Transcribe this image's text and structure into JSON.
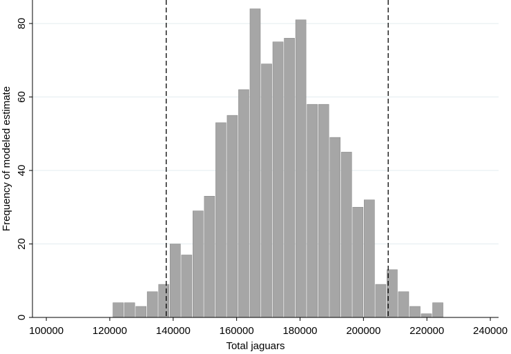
{
  "chart_data": {
    "type": "histogram",
    "x_label": "Total jaguars",
    "y_label": "Frequency of modeled estimate",
    "bins": [
      120900,
      124500,
      128100,
      131700,
      135300,
      138900,
      142500,
      146100,
      149700,
      153300,
      156900,
      160500,
      164100,
      167700,
      171300,
      174900,
      178500,
      182100,
      185700,
      189300,
      192900,
      196500,
      200100,
      203700,
      207300,
      210900,
      214500,
      218100,
      221700,
      225300
    ],
    "values": [
      4,
      4,
      3,
      7,
      9,
      20,
      17,
      29,
      33,
      53,
      55,
      62,
      84,
      69,
      75,
      76,
      81,
      58,
      58,
      49,
      45,
      30,
      32,
      9,
      13,
      7,
      3,
      1,
      4
    ],
    "color": "#a6a6a6",
    "reference_lines": [
      137800,
      207800
    ],
    "xlim": [
      94100,
      242600
    ],
    "xticks": [
      100000,
      120000,
      140000,
      160000,
      180000,
      200000,
      220000,
      240000
    ],
    "ylim": [
      0,
      86.4
    ],
    "yticks": [
      0,
      20,
      40,
      60,
      80
    ],
    "grid": true
  }
}
